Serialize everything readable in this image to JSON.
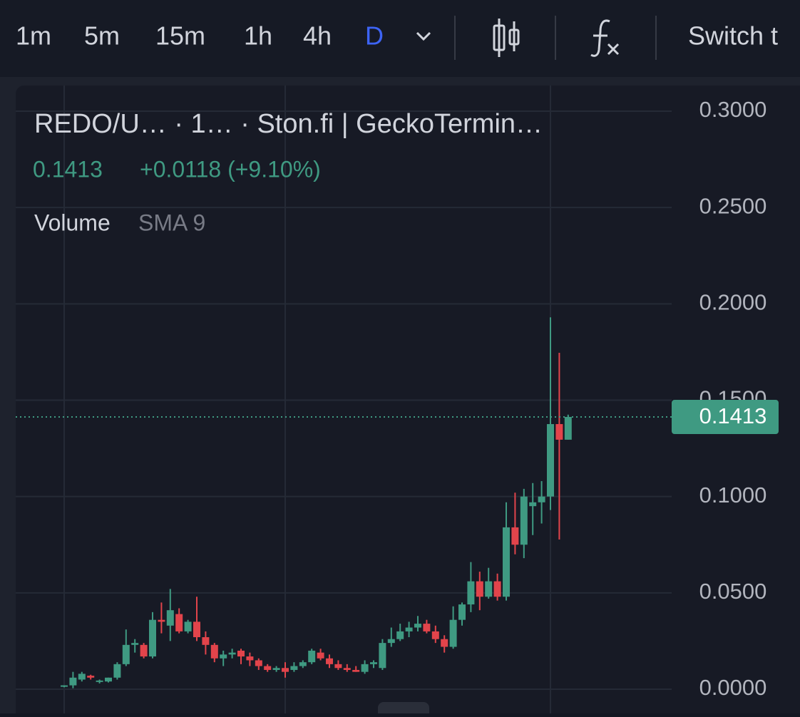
{
  "toolbar": {
    "intervals": [
      "1m",
      "5m",
      "15m",
      "1h",
      "4h",
      "D"
    ],
    "active": 5,
    "switch": "Switch t"
  },
  "chart_data": {
    "type": "candlestick",
    "title": "REDO/U…   · 1… · Ston.fi | GeckoTermin…",
    "legend": {
      "close": "0.1413",
      "change": "+0.0118 (+9.10%)",
      "indicator": "Volume",
      "indicator_params": "SMA 9"
    },
    "series": [
      {
        "up_color": "#3f9a82",
        "down_color": "#e2444b",
        "open": [
          0.0015,
          0.002,
          0.005,
          0.007,
          0.004,
          0.004,
          0.006,
          0.013,
          0.023,
          0.023,
          0.017,
          0.036,
          0.033,
          0.039,
          0.03,
          0.035,
          0.027,
          0.023,
          0.016,
          0.018,
          0.02,
          0.017,
          0.015,
          0.012,
          0.01,
          0.011,
          0.01,
          0.012,
          0.014,
          0.019,
          0.016,
          0.013,
          0.011,
          0.01,
          0.009,
          0.013,
          0.011,
          0.024,
          0.026,
          0.03,
          0.032,
          0.034,
          0.03,
          0.026,
          0.022,
          0.036,
          0.044,
          0.056,
          0.048,
          0.056,
          0.048,
          0.084,
          0.075,
          0.095,
          0.097,
          0.1,
          0.1376,
          0.1295
        ],
        "high": [
          0.002,
          0.009,
          0.009,
          0.0075,
          0.005,
          0.006,
          0.014,
          0.031,
          0.026,
          0.024,
          0.04,
          0.045,
          0.052,
          0.042,
          0.036,
          0.048,
          0.03,
          0.024,
          0.02,
          0.021,
          0.021,
          0.019,
          0.016,
          0.013,
          0.012,
          0.014,
          0.014,
          0.015,
          0.021,
          0.021,
          0.018,
          0.015,
          0.013,
          0.012,
          0.015,
          0.015,
          0.026,
          0.032,
          0.034,
          0.035,
          0.038,
          0.036,
          0.033,
          0.028,
          0.043,
          0.045,
          0.066,
          0.061,
          0.063,
          0.06,
          0.097,
          0.102,
          0.104,
          0.107,
          0.108,
          0.193,
          0.1746,
          0.1425
        ],
        "low": [
          0.001,
          0.0005,
          0.004,
          0.005,
          0.003,
          0.0035,
          0.005,
          0.012,
          0.019,
          0.016,
          0.016,
          0.029,
          0.025,
          0.029,
          0.029,
          0.025,
          0.018,
          0.014,
          0.012,
          0.016,
          0.013,
          0.012,
          0.01,
          0.009,
          0.009,
          0.006,
          0.009,
          0.011,
          0.013,
          0.015,
          0.011,
          0.01,
          0.009,
          0.009,
          0.008,
          0.011,
          0.01,
          0.022,
          0.025,
          0.027,
          0.03,
          0.029,
          0.024,
          0.019,
          0.021,
          0.033,
          0.04,
          0.041,
          0.047,
          0.046,
          0.046,
          0.07,
          0.068,
          0.08,
          0.086,
          0.093,
          0.0777,
          0.1295
        ],
        "close": [
          0.002,
          0.006,
          0.008,
          0.006,
          0.0045,
          0.006,
          0.013,
          0.023,
          0.024,
          0.017,
          0.036,
          0.035,
          0.041,
          0.03,
          0.035,
          0.027,
          0.023,
          0.016,
          0.018,
          0.019,
          0.017,
          0.015,
          0.012,
          0.01,
          0.011,
          0.009,
          0.012,
          0.014,
          0.02,
          0.016,
          0.013,
          0.011,
          0.01,
          0.009,
          0.013,
          0.014,
          0.024,
          0.026,
          0.03,
          0.032,
          0.034,
          0.03,
          0.026,
          0.022,
          0.036,
          0.044,
          0.056,
          0.048,
          0.056,
          0.048,
          0.084,
          0.075,
          0.1,
          0.097,
          0.1,
          0.1376,
          0.1295,
          0.1413
        ]
      }
    ],
    "ylim": [
      0,
      0.3
    ],
    "yticks": [
      {
        "value": 0,
        "label": "0.0000"
      },
      {
        "value": 0.05,
        "label": "0.0500"
      },
      {
        "value": 0.1,
        "label": "0.1000"
      },
      {
        "value": 0.15,
        "label": "0.1500"
      },
      {
        "value": 0.2,
        "label": "0.2000"
      },
      {
        "value": 0.25,
        "label": "0.2500"
      },
      {
        "value": 0.3,
        "label": "0.3000"
      }
    ],
    "grid": true
  }
}
